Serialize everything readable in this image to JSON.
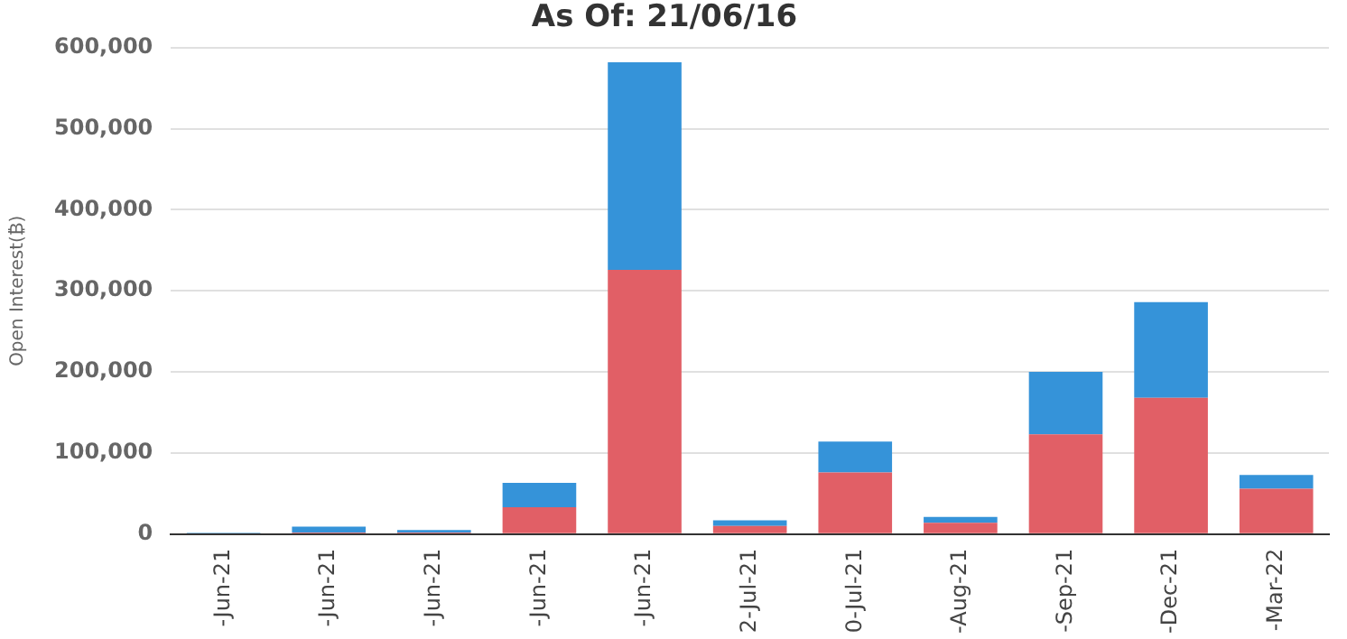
{
  "chart_data": {
    "type": "bar",
    "title": "As Of: 21/06/16",
    "ylabel": "Open Interest(₿)",
    "categories": [
      "-Jun-21",
      "-Jun-21",
      "-Jun-21",
      "-Jun-21",
      "-Jun-21",
      "2-Jul-21",
      "0-Jul-21",
      "-Aug-21",
      "-Sep-21",
      "-Dec-21",
      "-Mar-22"
    ],
    "stacked": true,
    "series": [
      {
        "color": "#e15f66",
        "values": [
          1000,
          2000,
          2000,
          33000,
          326000,
          10000,
          76000,
          14000,
          123000,
          168000,
          56000
        ]
      },
      {
        "color": "#3593d9",
        "values": [
          500,
          7000,
          3000,
          30000,
          256000,
          7000,
          38000,
          7000,
          77000,
          118000,
          17000
        ]
      }
    ],
    "ylim": [
      0,
      600000
    ],
    "yticks": [
      {
        "value": 0,
        "label": "0"
      },
      {
        "value": 100000,
        "label": "100,000"
      },
      {
        "value": 200000,
        "label": "200,000"
      },
      {
        "value": 300000,
        "label": "300,000"
      },
      {
        "value": 400000,
        "label": "400,000"
      },
      {
        "value": 500000,
        "label": "500,000"
      },
      {
        "value": 600000,
        "label": "600,000"
      }
    ],
    "grid": "y",
    "legend": false
  }
}
